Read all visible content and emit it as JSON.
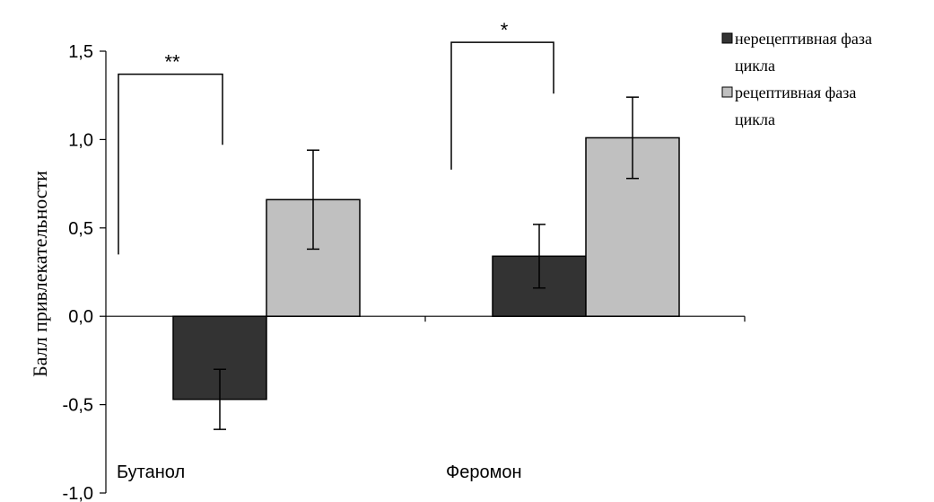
{
  "chart_data": {
    "type": "bar",
    "ylabel": "Балл привлекательности",
    "ylim": [
      -1.0,
      1.5
    ],
    "yticks": [
      -1.0,
      -0.5,
      0.0,
      0.5,
      1.0,
      1.5
    ],
    "ytick_labels": [
      "-1,0",
      "-0,5",
      "0,0",
      "0,5",
      "1,0",
      "1,5"
    ],
    "categories": [
      "Бутанол",
      "Феромон"
    ],
    "series": [
      {
        "name": "нерецептивная фаза цикла",
        "name_lines": [
          "нерецептивная фаза",
          "цикла"
        ],
        "color": "#333333",
        "values": [
          -0.47,
          0.34
        ],
        "errors": [
          0.17,
          0.18
        ]
      },
      {
        "name": "рецептивная фаза цикла",
        "name_lines": [
          "рецептивная фаза",
          "цикла"
        ],
        "color": "#c0c0c0",
        "values": [
          0.66,
          1.01
        ],
        "errors": [
          0.28,
          0.23
        ]
      }
    ],
    "significance": [
      {
        "category": "Бутанол",
        "label": "**",
        "left_y": 0.35,
        "right_y": 0.97,
        "top_y": 1.37
      },
      {
        "category": "Феромон",
        "label": "*",
        "left_y": 0.83,
        "right_y": 1.26,
        "top_y": 1.55
      }
    ],
    "grid": false,
    "legend_position": "top-right"
  }
}
